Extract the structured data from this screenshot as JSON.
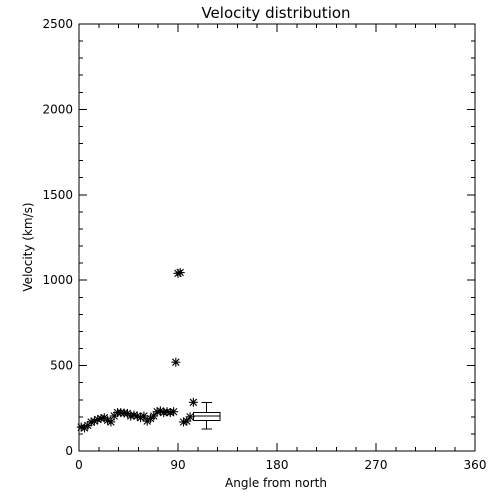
{
  "chart_data": {
    "type": "scatter",
    "title": "Velocity distribution",
    "xlabel": "Angle from north",
    "ylabel": "Velocity (km/s)",
    "xlim": [
      0,
      360
    ],
    "ylim": [
      0,
      2500
    ],
    "xticks": [
      0,
      90,
      180,
      270,
      360
    ],
    "yticks": [
      0,
      500,
      1000,
      1500,
      2000,
      2500
    ],
    "xticks_labels": [
      "0",
      "90",
      "180",
      "270",
      "360"
    ],
    "yticks_labels": [
      "0",
      "500",
      "1000",
      "1500",
      "2000",
      "2500"
    ],
    "series": [
      {
        "marker": "asterisk",
        "points": [
          {
            "x": 2,
            "y": 140
          },
          {
            "x": 5,
            "y": 135
          },
          {
            "x": 8,
            "y": 150
          },
          {
            "x": 11,
            "y": 170
          },
          {
            "x": 14,
            "y": 175
          },
          {
            "x": 17,
            "y": 185
          },
          {
            "x": 20,
            "y": 190
          },
          {
            "x": 23,
            "y": 195
          },
          {
            "x": 26,
            "y": 180
          },
          {
            "x": 29,
            "y": 170
          },
          {
            "x": 32,
            "y": 205
          },
          {
            "x": 35,
            "y": 225
          },
          {
            "x": 38,
            "y": 225
          },
          {
            "x": 41,
            "y": 222
          },
          {
            "x": 44,
            "y": 220
          },
          {
            "x": 47,
            "y": 205
          },
          {
            "x": 50,
            "y": 210
          },
          {
            "x": 53,
            "y": 205
          },
          {
            "x": 56,
            "y": 195
          },
          {
            "x": 59,
            "y": 205
          },
          {
            "x": 62,
            "y": 175
          },
          {
            "x": 65,
            "y": 190
          },
          {
            "x": 68,
            "y": 205
          },
          {
            "x": 71,
            "y": 230
          },
          {
            "x": 74,
            "y": 235
          },
          {
            "x": 77,
            "y": 225
          },
          {
            "x": 80,
            "y": 230
          },
          {
            "x": 83,
            "y": 225
          },
          {
            "x": 86,
            "y": 230
          },
          {
            "x": 88,
            "y": 520
          },
          {
            "x": 90,
            "y": 1040
          },
          {
            "x": 92,
            "y": 1045
          },
          {
            "x": 95,
            "y": 170
          },
          {
            "x": 98,
            "y": 175
          },
          {
            "x": 101,
            "y": 200
          },
          {
            "x": 104,
            "y": 285
          }
        ]
      }
    ],
    "boxplot": {
      "x_range": [
        104,
        128
      ],
      "whisker_low": 130,
      "q1": 180,
      "median": 205,
      "q3": 225,
      "whisker_high": 285
    }
  }
}
